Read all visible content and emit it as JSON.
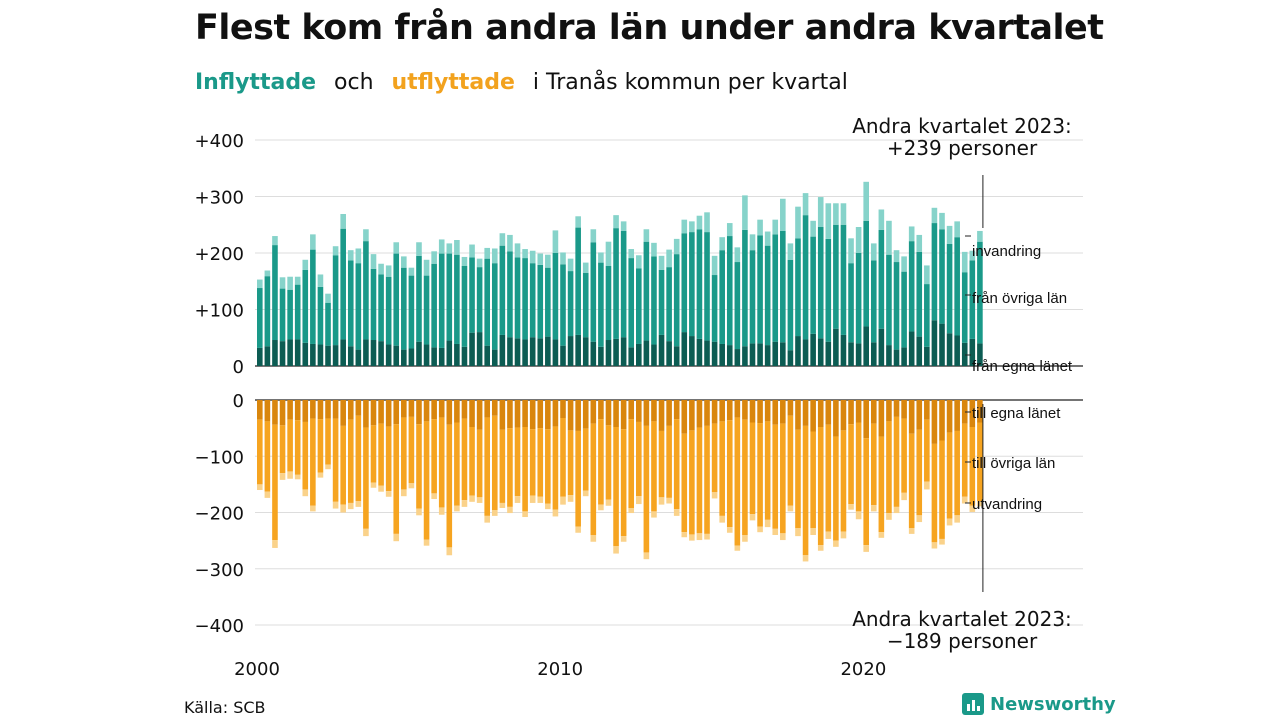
{
  "header": {
    "title": "Flest kom från andra län under andra kvartalet",
    "subtitle_in": "Inflyttade",
    "subtitle_and": "och",
    "subtitle_out": "utflyttade",
    "subtitle_rest": "i Tranås kommun per kvartal"
  },
  "annotations": {
    "top_line1": "Andra kvartalet 2023:",
    "top_line2": "+239 personer",
    "bottom_line1": "Andra kvartalet 2023:",
    "bottom_line2": "−189 personer"
  },
  "footer": {
    "source": "Källa: SCB",
    "brand": "Newsworthy"
  },
  "colors": {
    "in_own": "#0c5c53",
    "in_other": "#1a9989",
    "in_foreign": "#86d3ca",
    "out_own": "#d9860d",
    "out_other": "#f6a420",
    "out_foreign": "#fad28a",
    "grid": "#dddddd"
  },
  "chart_data": {
    "type": "bar",
    "stacked": true,
    "x_label": "",
    "y_label": "",
    "x_ticks": [
      "2000",
      "2010",
      "2020"
    ],
    "y_ticks_top": [
      "+400",
      "+300",
      "+200",
      "+100",
      "0"
    ],
    "y_ticks_bottom": [
      "0",
      "−100",
      "−200",
      "−300",
      "−400"
    ],
    "ylim_top": [
      0,
      400
    ],
    "ylim_bottom": [
      -400,
      0
    ],
    "grid": true,
    "x_start": "2000 Q1",
    "x_end": "2023 Q2",
    "series_labels": {
      "in_foreign": "invandring",
      "in_other": "från övriga län",
      "in_own": "från egna länet",
      "out_own": "till egna länet",
      "out_other": "till övriga län",
      "out_foreign": "utvandring"
    },
    "in_own": [
      32,
      35,
      46,
      44,
      47,
      47,
      41,
      39,
      38,
      36,
      37,
      47,
      35,
      29,
      47,
      46,
      44,
      38,
      36,
      29,
      31,
      43,
      38,
      33,
      32,
      45,
      39,
      34,
      59,
      60,
      36,
      29,
      55,
      51,
      49,
      47,
      51,
      49,
      52,
      47,
      36,
      53,
      55,
      51,
      43,
      34,
      46,
      48,
      51,
      33,
      39,
      45,
      38,
      55,
      44,
      35,
      60,
      53,
      48,
      45,
      43,
      39,
      37,
      30,
      35,
      40,
      40,
      37,
      43,
      42,
      28,
      53,
      47,
      57,
      49,
      43,
      66,
      55,
      42,
      40,
      70,
      42,
      66,
      37,
      29,
      33,
      61,
      52,
      34,
      81,
      75,
      58,
      54,
      41,
      48,
      40
    ],
    "in_other": [
      106,
      124,
      168,
      93,
      88,
      97,
      129,
      167,
      102,
      76,
      159,
      196,
      152,
      153,
      174,
      126,
      118,
      120,
      163,
      145,
      129,
      152,
      122,
      148,
      167,
      154,
      158,
      143,
      133,
      115,
      154,
      153,
      158,
      152,
      143,
      144,
      131,
      130,
      122,
      153,
      144,
      115,
      190,
      114,
      176,
      149,
      131,
      196,
      188,
      158,
      134,
      175,
      156,
      115,
      131,
      163,
      175,
      184,
      194,
      192,
      118,
      166,
      193,
      154,
      206,
      165,
      191,
      176,
      190,
      197,
      160,
      173,
      220,
      172,
      197,
      182,
      184,
      195,
      140,
      160,
      187,
      145,
      175,
      160,
      155,
      134,
      160,
      150,
      111,
      172,
      167,
      158,
      174,
      125,
      139,
      180
    ],
    "in_foreign": [
      15,
      10,
      16,
      20,
      23,
      14,
      18,
      27,
      22,
      16,
      16,
      26,
      18,
      26,
      21,
      26,
      19,
      20,
      20,
      20,
      14,
      24,
      28,
      22,
      25,
      18,
      26,
      16,
      23,
      15,
      19,
      26,
      22,
      29,
      25,
      16,
      22,
      20,
      23,
      40,
      21,
      22,
      20,
      18,
      23,
      18,
      43,
      23,
      17,
      16,
      23,
      22,
      24,
      25,
      31,
      27,
      24,
      19,
      24,
      35,
      34,
      23,
      23,
      26,
      61,
      28,
      28,
      25,
      26,
      57,
      29,
      56,
      39,
      28,
      53,
      63,
      38,
      38,
      44,
      46,
      69,
      30,
      36,
      60,
      21,
      27,
      26,
      30,
      33,
      27,
      29,
      32,
      28,
      36,
      17,
      19
    ],
    "out_own": [
      -35,
      -38,
      -44,
      -45,
      -35,
      -36,
      -39,
      -33,
      -34,
      -33,
      -33,
      -46,
      -35,
      -28,
      -49,
      -45,
      -42,
      -47,
      -43,
      -31,
      -30,
      -43,
      -38,
      -34,
      -31,
      -44,
      -40,
      -33,
      -48,
      -53,
      -31,
      -28,
      -53,
      -50,
      -49,
      -48,
      -52,
      -50,
      -52,
      -47,
      -32,
      -54,
      -55,
      -51,
      -42,
      -34,
      -45,
      -48,
      -52,
      -34,
      -39,
      -46,
      -38,
      -55,
      -46,
      -34,
      -60,
      -54,
      -49,
      -46,
      -42,
      -38,
      -36,
      -31,
      -35,
      -40,
      -41,
      -38,
      -44,
      -42,
      -28,
      -53,
      -46,
      -56,
      -48,
      -44,
      -65,
      -54,
      -43,
      -40,
      -68,
      -42,
      -65,
      -38,
      -30,
      -33,
      -60,
      -53,
      -35,
      -78,
      -72,
      -58,
      -55,
      -42,
      -48,
      -40
    ],
    "out_other": [
      -115,
      -125,
      -205,
      -85,
      -92,
      -97,
      -120,
      -155,
      -95,
      -82,
      -148,
      -140,
      -148,
      -152,
      -180,
      -102,
      -110,
      -115,
      -195,
      -128,
      -118,
      -150,
      -210,
      -132,
      -160,
      -218,
      -148,
      -145,
      -122,
      -120,
      -175,
      -168,
      -130,
      -140,
      -122,
      -150,
      -118,
      -122,
      -132,
      -148,
      -140,
      -115,
      -170,
      -110,
      -198,
      -152,
      -132,
      -212,
      -190,
      -158,
      -132,
      -225,
      -160,
      -118,
      -128,
      -160,
      -175,
      -185,
      -188,
      -192,
      -122,
      -168,
      -190,
      -228,
      -205,
      -163,
      -184,
      -175,
      -185,
      -195,
      -160,
      -175,
      -230,
      -172,
      -210,
      -190,
      -185,
      -180,
      -142,
      -158,
      -190,
      -145,
      -170,
      -163,
      -160,
      -132,
      -168,
      -152,
      -110,
      -175,
      -175,
      -153,
      -150,
      -130,
      -140,
      -140
    ],
    "out_foreign": [
      -10,
      -11,
      -14,
      -12,
      -13,
      -8,
      -12,
      -10,
      -9,
      -8,
      -12,
      -14,
      -11,
      -10,
      -13,
      -9,
      -11,
      -10,
      -13,
      -12,
      -9,
      -12,
      -11,
      -10,
      -13,
      -14,
      -10,
      -12,
      -11,
      -10,
      -12,
      -10,
      -9,
      -11,
      -12,
      -10,
      -13,
      -11,
      -10,
      -12,
      -14,
      -12,
      -11,
      -10,
      -12,
      -10,
      -11,
      -13,
      -10,
      -9,
      -14,
      -12,
      -11,
      -13,
      -10,
      -12,
      -9,
      -11,
      -12,
      -10,
      -11,
      -12,
      -10,
      -9,
      -12,
      -11,
      -10,
      -13,
      -11,
      -12,
      -10,
      -14,
      -11,
      -12,
      -10,
      -13,
      -11,
      -12,
      -10,
      -14,
      -12,
      -11,
      -10,
      -12,
      -11,
      -13,
      -10,
      -12,
      -14,
      -11,
      -10,
      -12,
      -13,
      -12,
      -11,
      -9
    ]
  }
}
